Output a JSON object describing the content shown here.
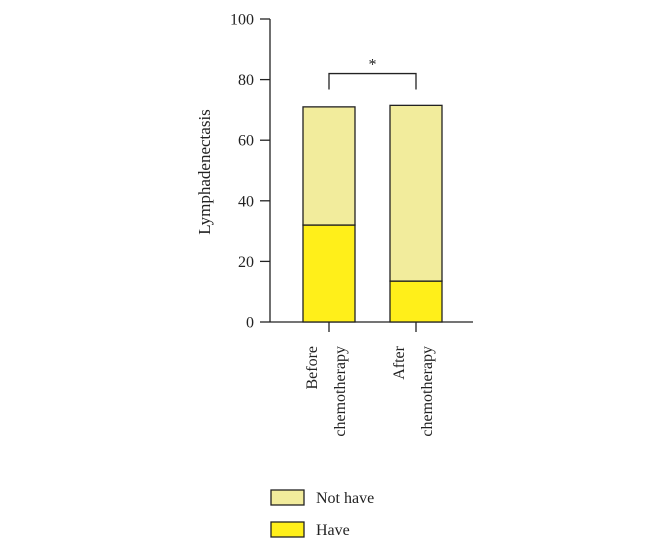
{
  "chart_data": {
    "type": "bar",
    "stacked": true,
    "categories": [
      "Before chemotherapy",
      "After chemotherapy"
    ],
    "category_label_lines": [
      [
        "Before",
        "chemotherapy"
      ],
      [
        "After",
        "chemotherapy"
      ]
    ],
    "series": [
      {
        "name": "Have",
        "values": [
          32,
          13.5
        ],
        "color": "#ffef1a"
      },
      {
        "name": "Not have",
        "values": [
          39,
          58
        ],
        "color": "#f2ec9c"
      }
    ],
    "title": "",
    "xlabel": "",
    "ylabel": "Lymphadenectasis",
    "ylim": [
      0,
      100
    ],
    "yticks": [
      0,
      20,
      40,
      60,
      80,
      100
    ],
    "grid": false,
    "legend": {
      "position": "bottom",
      "entries": [
        {
          "label": "Not have",
          "color": "#f2ec9c"
        },
        {
          "label": "Have",
          "color": "#ffef1a"
        }
      ]
    },
    "annotations": [
      {
        "type": "significance-bracket",
        "from": "Before chemotherapy",
        "to": "After chemotherapy",
        "label": "*",
        "y": 82
      }
    ]
  }
}
